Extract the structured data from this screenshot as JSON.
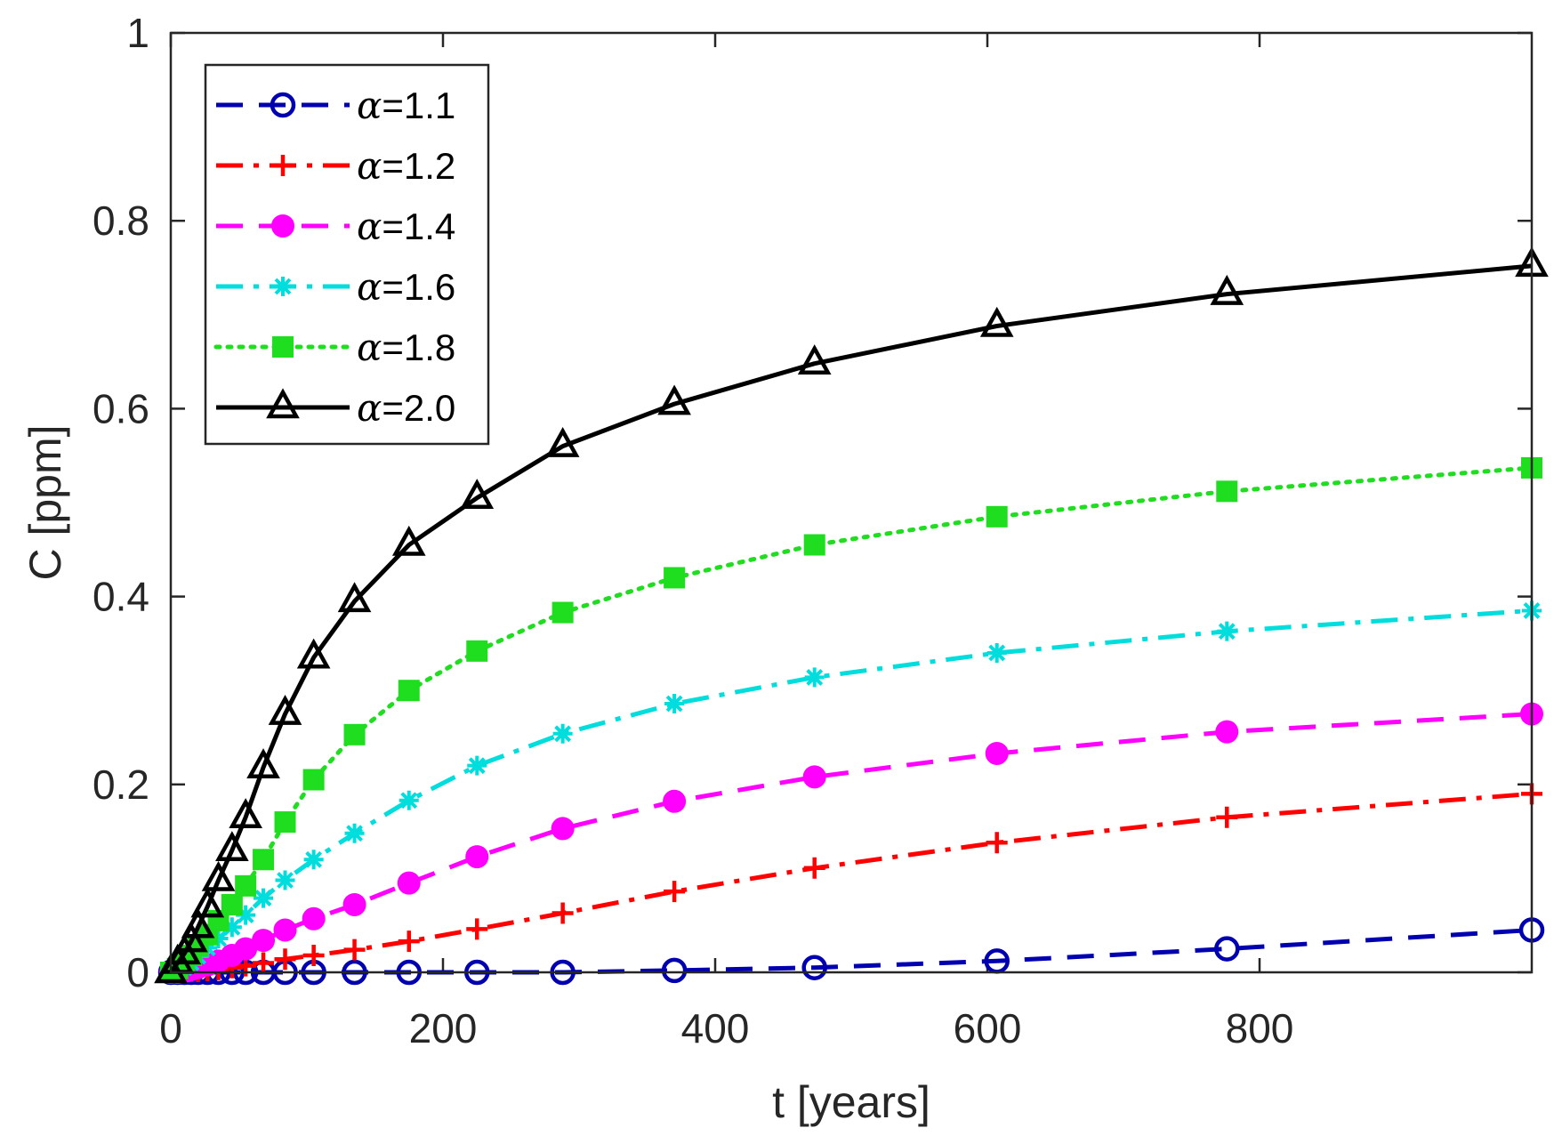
{
  "chart_data": {
    "type": "line",
    "title": "",
    "xlabel": "t [years]",
    "ylabel": "C [ppm]",
    "xlim": [
      0,
      1000
    ],
    "ylim": [
      0,
      1
    ],
    "xticks": [
      0,
      200,
      400,
      600,
      800
    ],
    "xtick_labels": [
      "0",
      "200",
      "400",
      "600",
      "800"
    ],
    "yticks": [
      0,
      0.2,
      0.4,
      0.6,
      0.8,
      1
    ],
    "ytick_labels": [
      "0",
      "0.2",
      "0.4",
      "0.6",
      "0.8",
      "1"
    ],
    "grid": false,
    "legend_position": "top-left",
    "x": [
      0,
      5,
      10,
      15,
      20,
      27,
      35,
      45,
      55,
      68,
      84,
      105,
      135,
      175,
      225,
      288,
      370,
      473,
      607,
      776,
      1000
    ],
    "series": [
      {
        "name": "α=1.1",
        "legend_symbol": "α",
        "legend_value": "=1.1",
        "color": "#0000b0",
        "line_style": "dashed",
        "marker": "circle-open",
        "values": [
          0,
          0,
          0,
          0,
          0,
          0,
          0,
          0,
          0,
          0,
          0,
          0,
          0,
          0,
          0,
          0,
          0.002,
          0.005,
          0.012,
          0.025,
          0.045
        ]
      },
      {
        "name": "α=1.2",
        "legend_symbol": "α",
        "legend_value": "=1.2",
        "color": "#ff0000",
        "line_style": "dash-dot",
        "marker": "plus",
        "values": [
          0,
          0,
          0,
          0.001,
          0.001,
          0.002,
          0.003,
          0.005,
          0.007,
          0.01,
          0.014,
          0.018,
          0.024,
          0.033,
          0.046,
          0.063,
          0.086,
          0.111,
          0.138,
          0.165,
          0.19
        ]
      },
      {
        "name": "α=1.4",
        "legend_symbol": "α",
        "legend_value": "=1.4",
        "color": "#ff00ff",
        "line_style": "dashed",
        "marker": "circle-filled",
        "values": [
          0,
          0,
          0.001,
          0.003,
          0.005,
          0.008,
          0.012,
          0.018,
          0.025,
          0.034,
          0.045,
          0.057,
          0.072,
          0.095,
          0.123,
          0.153,
          0.182,
          0.208,
          0.233,
          0.256,
          0.275
        ]
      },
      {
        "name": "α=1.6",
        "legend_symbol": "α",
        "legend_value": "=1.6",
        "color": "#00dddd",
        "line_style": "dash-dot",
        "marker": "asterisk",
        "values": [
          0,
          0.002,
          0.005,
          0.01,
          0.017,
          0.026,
          0.036,
          0.048,
          0.061,
          0.079,
          0.098,
          0.12,
          0.148,
          0.183,
          0.22,
          0.254,
          0.286,
          0.314,
          0.34,
          0.363,
          0.385
        ]
      },
      {
        "name": "α=1.8",
        "legend_symbol": "α",
        "legend_value": "=1.8",
        "color": "#1fdd1f",
        "line_style": "dotted",
        "marker": "square",
        "values": [
          0,
          0.004,
          0.01,
          0.018,
          0.028,
          0.04,
          0.055,
          0.072,
          0.092,
          0.12,
          0.16,
          0.205,
          0.253,
          0.3,
          0.342,
          0.383,
          0.42,
          0.455,
          0.485,
          0.512,
          0.537
        ]
      },
      {
        "name": "α=2.0",
        "legend_symbol": "α",
        "legend_value": "=2.0",
        "color": "#000000",
        "line_style": "solid",
        "marker": "triangle",
        "values": [
          0,
          0.01,
          0.02,
          0.033,
          0.048,
          0.07,
          0.098,
          0.13,
          0.165,
          0.218,
          0.275,
          0.335,
          0.395,
          0.455,
          0.505,
          0.56,
          0.605,
          0.648,
          0.688,
          0.722,
          0.752
        ]
      }
    ]
  }
}
